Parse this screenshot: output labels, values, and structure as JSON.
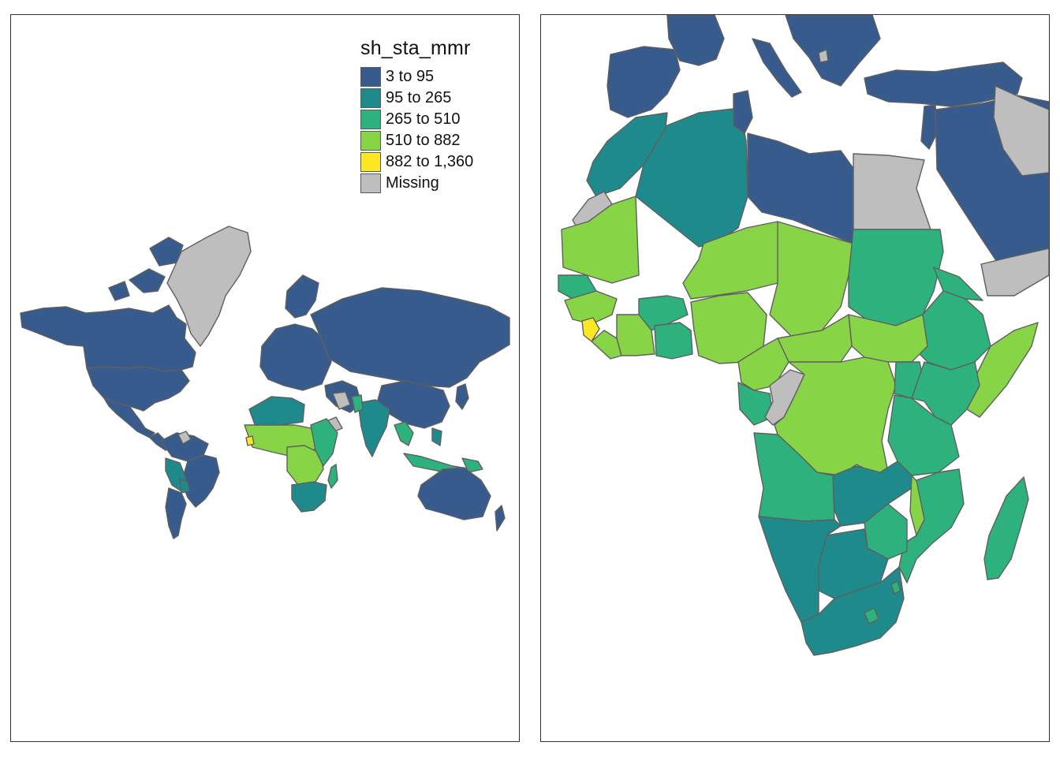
{
  "legend": {
    "title": "sh_sta_mmr",
    "items": [
      {
        "label": "3 to 95",
        "color": "#365b8c"
      },
      {
        "label": "95 to 265",
        "color": "#1f8a8c"
      },
      {
        "label": "265 to 510",
        "color": "#2db27d"
      },
      {
        "label": "510 to 882",
        "color": "#88d447"
      },
      {
        "label": "882 to 1,360",
        "color": "#fde725"
      },
      {
        "label": "Missing",
        "color": "#bebebe"
      }
    ]
  },
  "colors": {
    "c1": "#365b8c",
    "c2": "#1f8a8c",
    "c3": "#2db27d",
    "c4": "#88d447",
    "c5": "#fde725",
    "missing": "#bebebe",
    "border": "#5f5f5f",
    "frame": "#333333"
  }
}
